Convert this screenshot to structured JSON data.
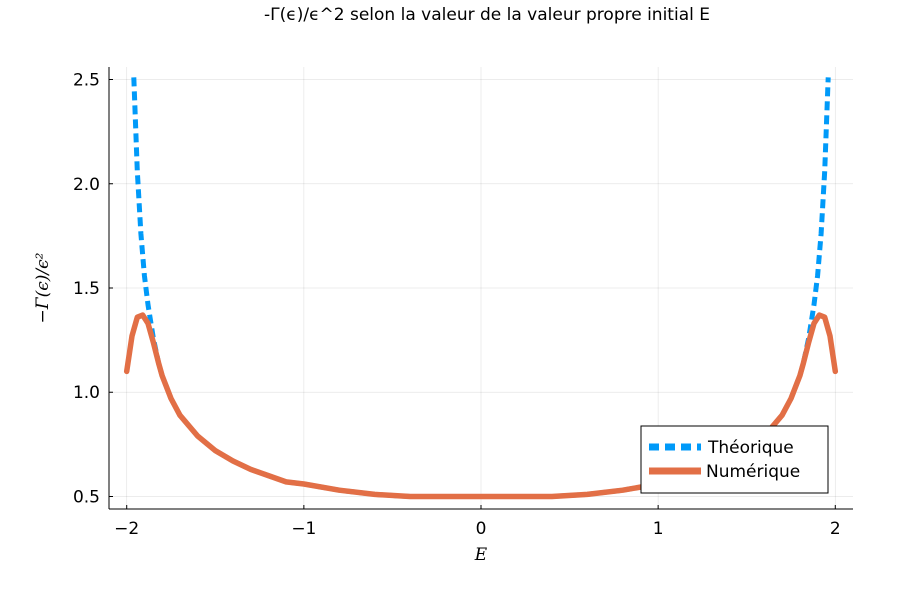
{
  "chart_data": {
    "type": "line",
    "title": "-Γ(ϵ)/ϵ^2 selon la valeur de la valeur propre initial E",
    "xlabel": "E",
    "ylabel": "−Γ(ϵ)/ϵ²",
    "xlim": [
      -2.1,
      2.1
    ],
    "ylim": [
      0.44,
      2.56
    ],
    "xticks": [
      -2,
      -1,
      0,
      1,
      2
    ],
    "xtick_labels": [
      "−2",
      "−1",
      "0",
      "1",
      "2"
    ],
    "yticks": [
      0.5,
      1.0,
      1.5,
      2.0,
      2.5
    ],
    "ytick_labels": [
      "0.5",
      "1.0",
      "1.5",
      "2.0",
      "2.5"
    ],
    "grid": true,
    "legend_position": "bottom-right",
    "series": [
      {
        "name": "Théorique",
        "color": "#009af9",
        "style": "dashed",
        "x": [
          -1.96,
          -1.94,
          -1.92,
          -1.9,
          -1.88,
          -1.85,
          -1.82,
          -1.8,
          -1.75,
          -1.7,
          -1.6,
          -1.5,
          -1.4,
          -1.3,
          -1.2,
          -1.1,
          -1.0,
          -0.8,
          -0.6,
          -0.4,
          -0.2,
          0.0,
          0.2,
          0.4,
          0.6,
          0.8,
          1.0,
          1.1,
          1.2,
          1.3,
          1.4,
          1.5,
          1.6,
          1.7,
          1.75,
          1.8,
          1.82,
          1.85,
          1.88,
          1.9,
          1.92,
          1.94,
          1.96
        ],
        "y": [
          2.51,
          2.06,
          1.76,
          1.56,
          1.42,
          1.26,
          1.14,
          1.08,
          0.97,
          0.89,
          0.79,
          0.72,
          0.67,
          0.63,
          0.6,
          0.57,
          0.56,
          0.53,
          0.51,
          0.5,
          0.5,
          0.5,
          0.5,
          0.5,
          0.51,
          0.53,
          0.56,
          0.57,
          0.6,
          0.63,
          0.67,
          0.72,
          0.79,
          0.89,
          0.97,
          1.08,
          1.14,
          1.26,
          1.42,
          1.56,
          1.76,
          2.06,
          2.51
        ]
      },
      {
        "name": "Numérique",
        "color": "#e26f46",
        "style": "solid",
        "x": [
          -2.0,
          -1.97,
          -1.94,
          -1.91,
          -1.88,
          -1.85,
          -1.82,
          -1.8,
          -1.75,
          -1.7,
          -1.6,
          -1.5,
          -1.4,
          -1.3,
          -1.2,
          -1.1,
          -1.0,
          -0.8,
          -0.6,
          -0.4,
          -0.2,
          0.0,
          0.2,
          0.4,
          0.6,
          0.8,
          1.0,
          1.1,
          1.2,
          1.3,
          1.4,
          1.5,
          1.6,
          1.7,
          1.75,
          1.8,
          1.82,
          1.85,
          1.88,
          1.91,
          1.94,
          1.97,
          2.0
        ],
        "y": [
          1.1,
          1.27,
          1.36,
          1.37,
          1.33,
          1.24,
          1.14,
          1.08,
          0.97,
          0.89,
          0.79,
          0.72,
          0.67,
          0.63,
          0.6,
          0.57,
          0.56,
          0.53,
          0.51,
          0.5,
          0.5,
          0.5,
          0.5,
          0.5,
          0.51,
          0.53,
          0.56,
          0.57,
          0.6,
          0.63,
          0.67,
          0.72,
          0.79,
          0.89,
          0.97,
          1.08,
          1.14,
          1.24,
          1.33,
          1.37,
          1.36,
          1.27,
          1.1
        ]
      }
    ]
  }
}
